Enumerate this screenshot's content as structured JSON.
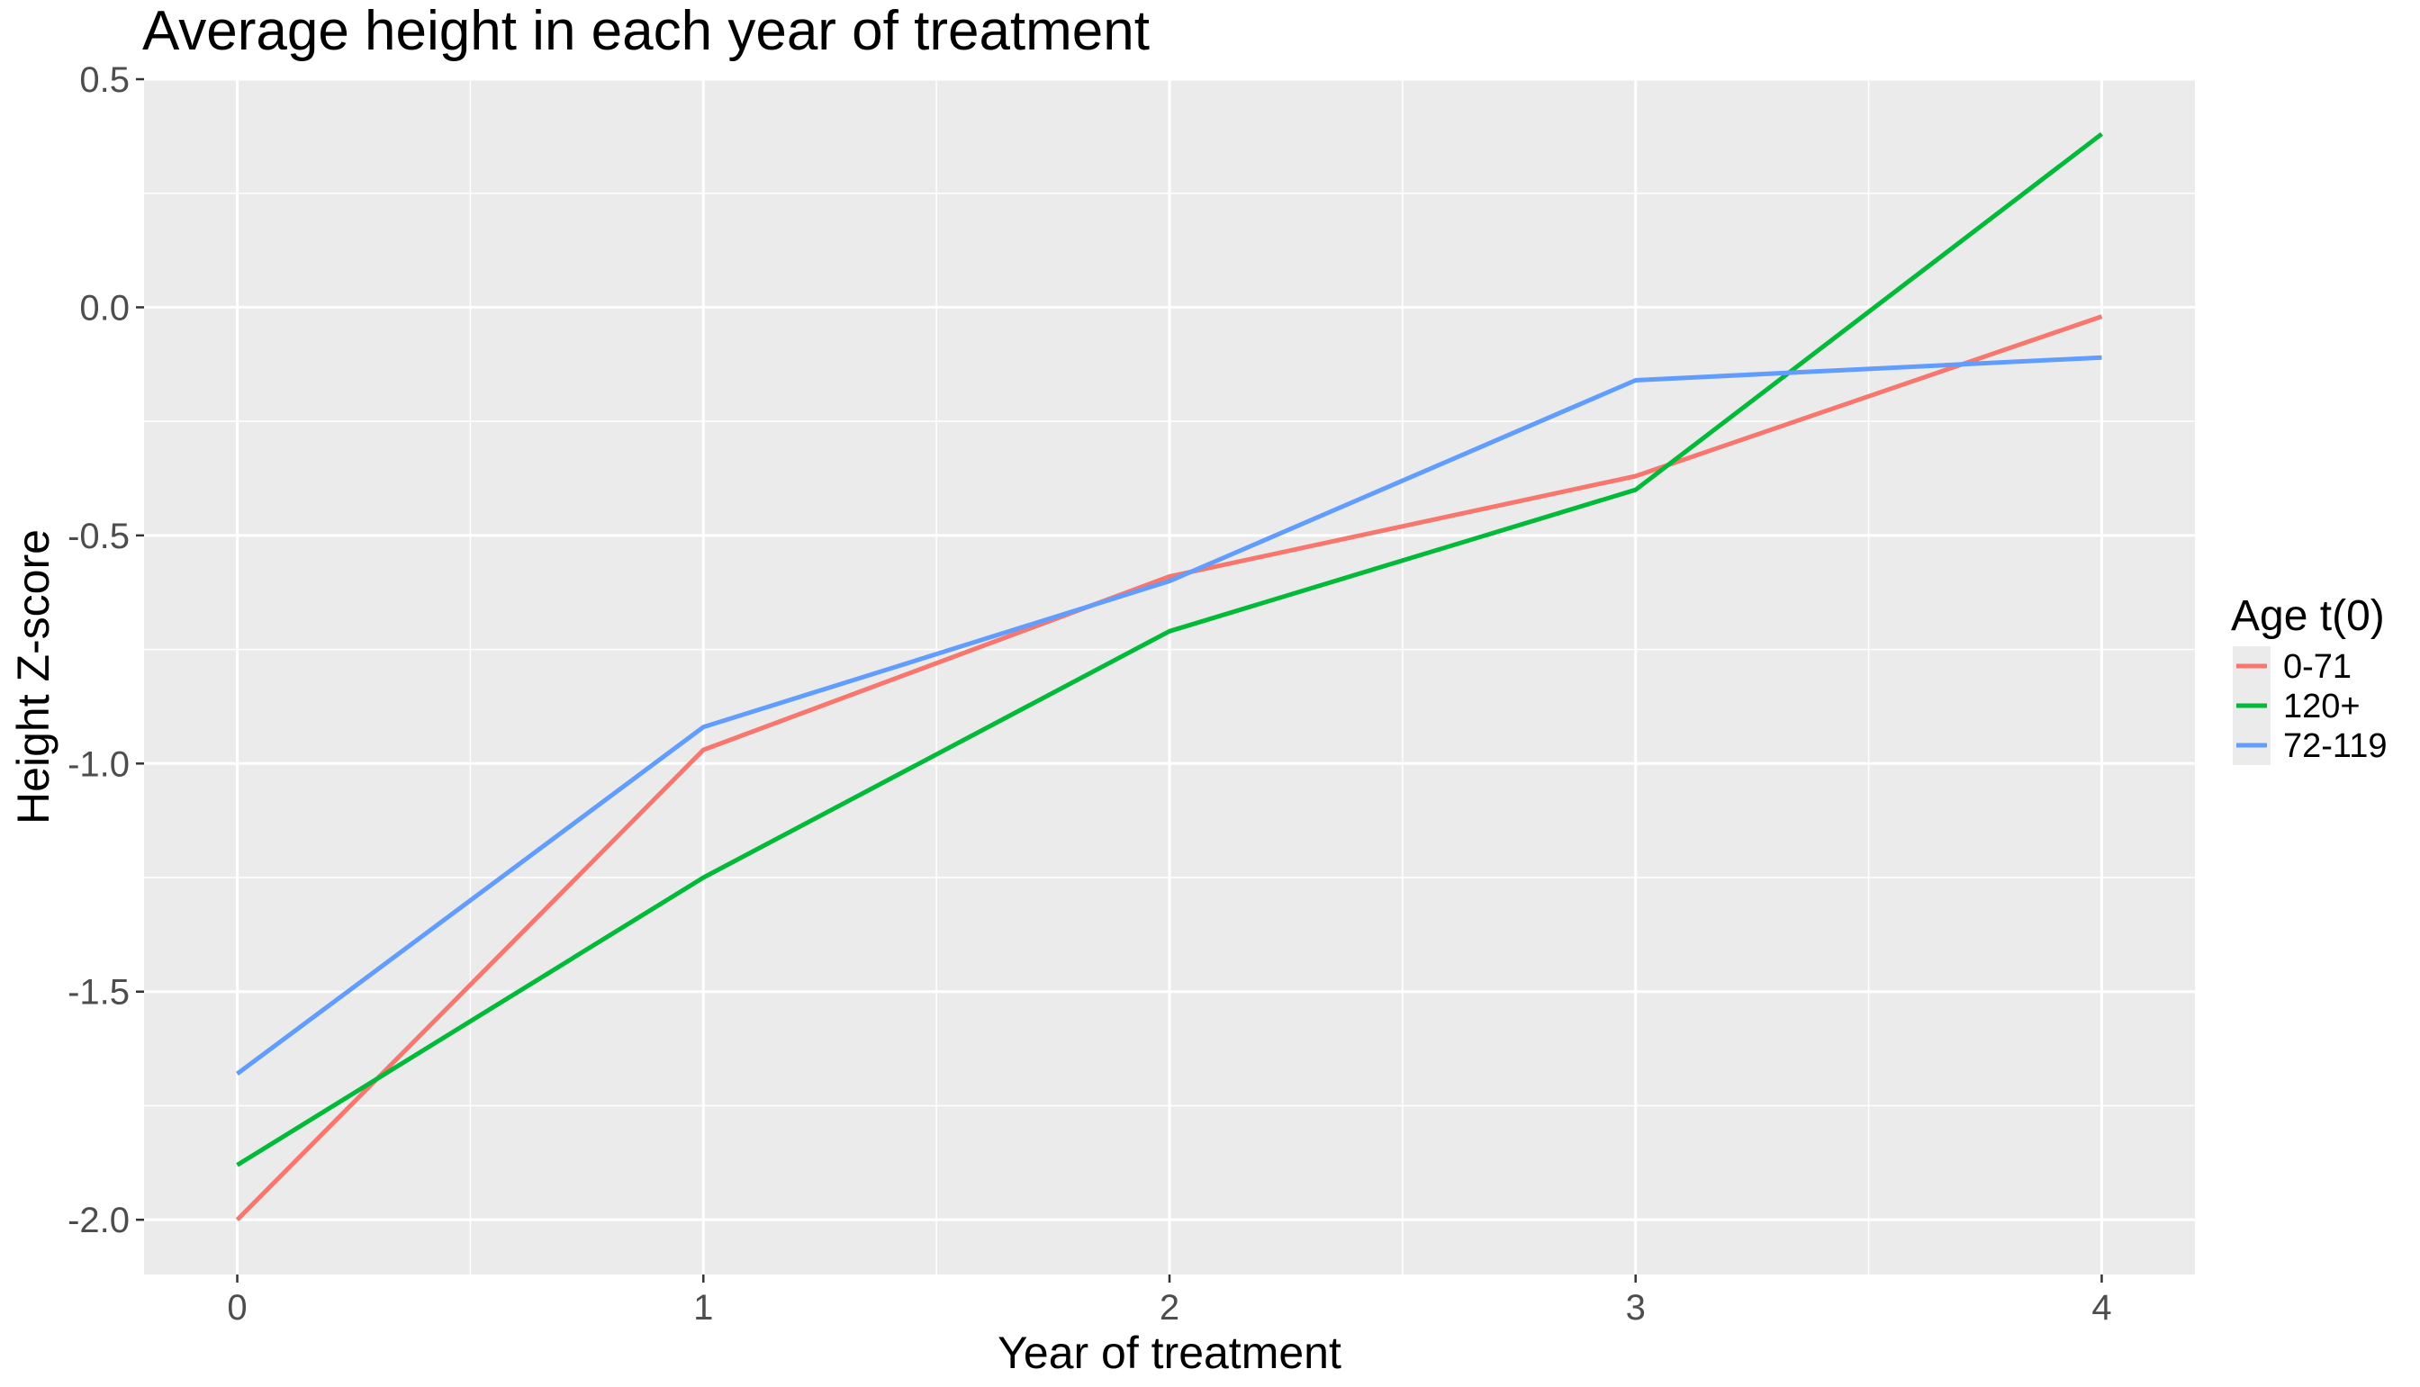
{
  "chart_data": {
    "type": "line",
    "title": "Average height in each year of treatment",
    "xlabel": "Year of treatment",
    "ylabel": "Height Z-score",
    "x": [
      0,
      1,
      2,
      3,
      4
    ],
    "xlim": [
      -0.2,
      4.2
    ],
    "ylim": [
      -2.12,
      0.5
    ],
    "x_ticks": [
      0,
      1,
      2,
      3,
      4
    ],
    "x_tick_labels": [
      "0",
      "1",
      "2",
      "3",
      "4"
    ],
    "y_ticks": [
      -2.0,
      -1.5,
      -1.0,
      -0.5,
      0.0,
      0.5
    ],
    "y_tick_labels": [
      "-2.0",
      "-1.5",
      "-1.0",
      "-0.5",
      "0.0",
      "0.5"
    ],
    "grid": true,
    "legend": {
      "title": "Age t(0)",
      "position": "right"
    },
    "series": [
      {
        "name": "0-71",
        "color": "#F8766D",
        "values": [
          -2.0,
          -0.97,
          -0.59,
          -0.37,
          -0.02
        ]
      },
      {
        "name": "120+",
        "color": "#00BA38",
        "values": [
          -1.88,
          -1.25,
          -0.71,
          -0.4,
          0.38
        ]
      },
      {
        "name": "72-119",
        "color": "#619CFF",
        "values": [
          -1.68,
          -0.92,
          -0.6,
          -0.16,
          -0.11
        ]
      }
    ],
    "panel_background": "#EBEBEB",
    "grid_color": "#FFFFFF",
    "text_color": "#000000",
    "tick_label_color": "#4D4D4D",
    "tick_color": "#333333"
  }
}
